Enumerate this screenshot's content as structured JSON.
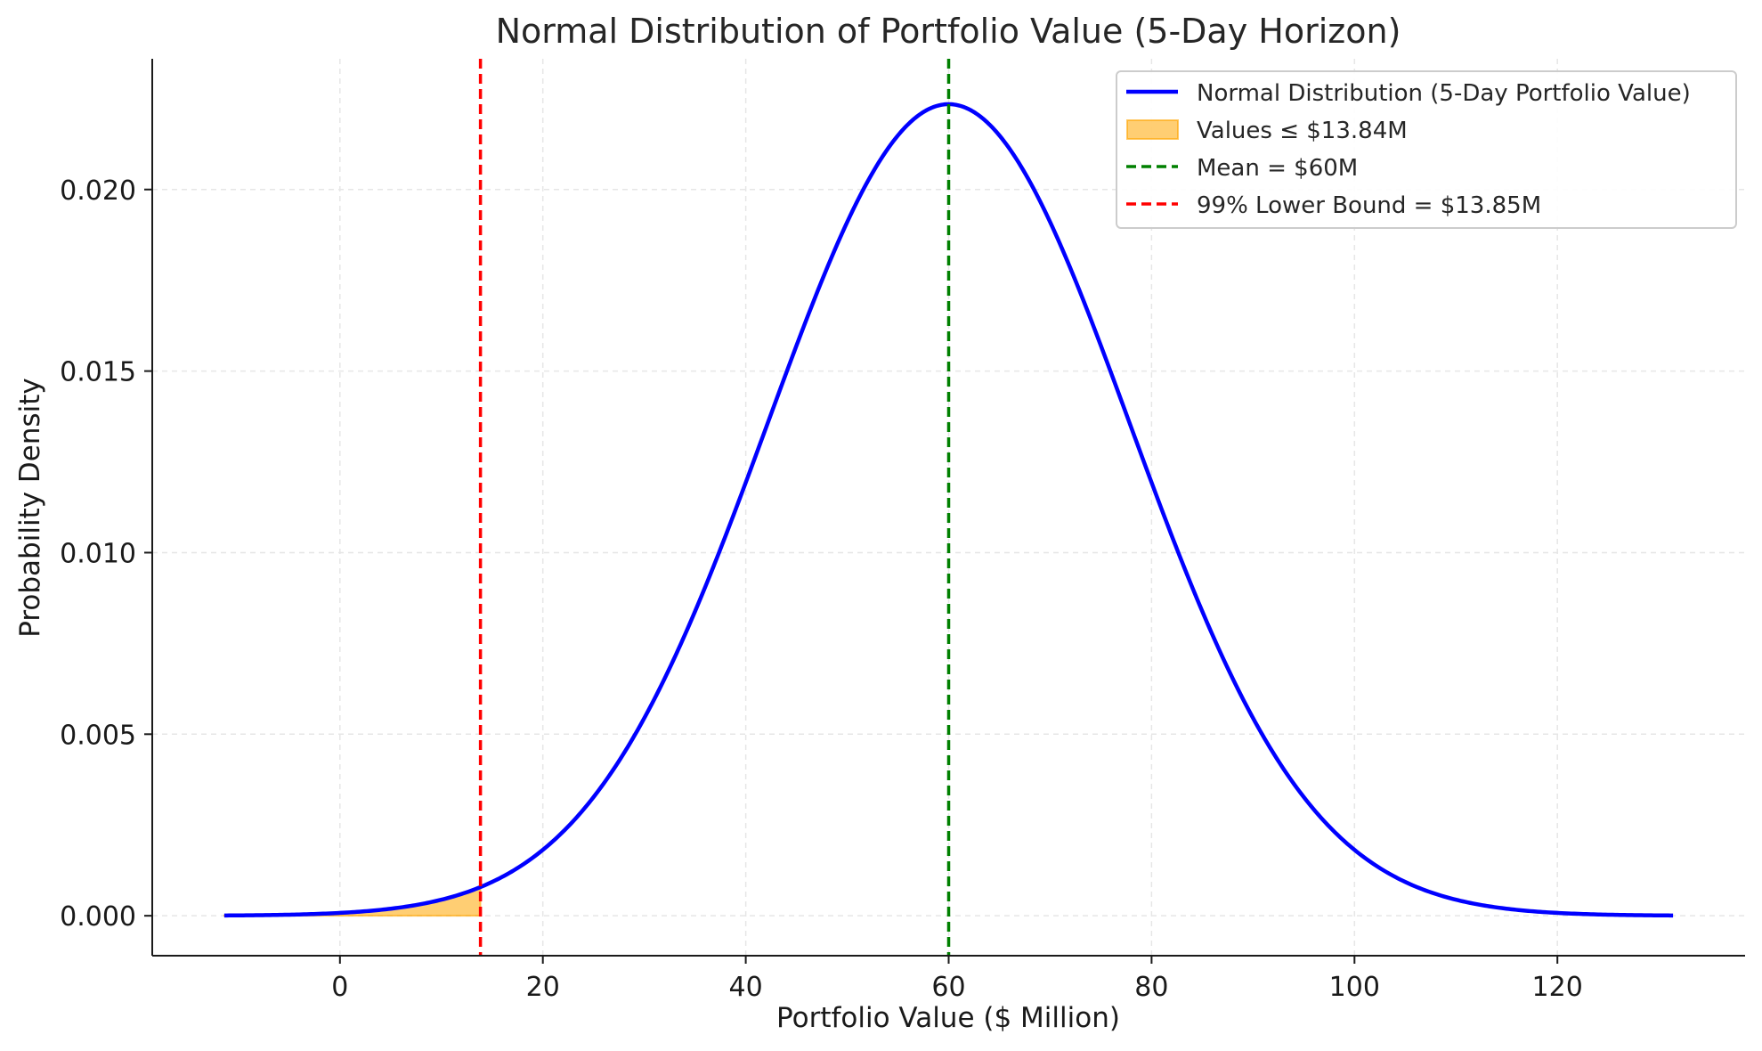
{
  "chart_data": {
    "type": "line",
    "title": "Normal Distribution of Portfolio Value (5-Day Horizon)",
    "xlabel": "Portfolio Value ($ Million)",
    "ylabel": "Probability Density",
    "xlim": [
      -18.5,
      138.5
    ],
    "ylim": [
      -0.0011,
      0.0236
    ],
    "x_ticks": [
      0,
      20,
      40,
      60,
      80,
      100,
      120
    ],
    "x_tick_labels": [
      "0",
      "20",
      "40",
      "60",
      "80",
      "100",
      "120"
    ],
    "y_ticks": [
      0.0,
      0.005,
      0.01,
      0.015,
      0.02
    ],
    "y_tick_labels": [
      "0.000",
      "0.005",
      "0.010",
      "0.015",
      "0.020"
    ],
    "grid": true,
    "legend_position": "top-right",
    "distribution": {
      "mean": 60,
      "std_dev": 17.85,
      "x_range": [
        -11.4,
        131.4
      ]
    },
    "series": [
      {
        "name": "Normal Distribution (5-Day Portfolio Value)",
        "kind": "curve",
        "color": "#0000ff"
      },
      {
        "name": "Values ≤ $13.84M",
        "kind": "shaded-area",
        "x_max": 13.84,
        "color": "#ffa500"
      },
      {
        "name": "Mean = $60M",
        "kind": "vertical-line",
        "x": 60,
        "color": "#008000"
      },
      {
        "name": "99% Lower Bound = $13.85M",
        "kind": "vertical-line",
        "x": 13.85,
        "color": "#ff0000"
      }
    ]
  }
}
